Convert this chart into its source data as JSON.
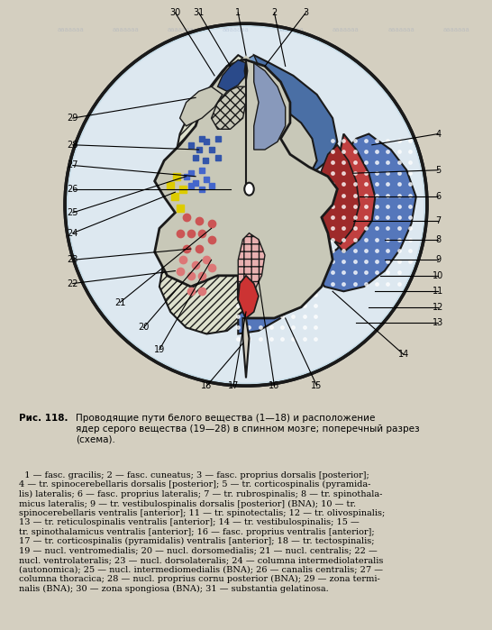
{
  "title": "Рис. 118.",
  "caption_bold": "Рис. 118.",
  "caption_text": "Проводящие пути белого вещества (1—18) и расположение ядер серого вещества (19—28) в спинном мозге; поперечный разрез (схема).",
  "legend_text": "1 — fasc. gracilis; 2 — fasc. cuneatus; 3 — fasc. proprius dorsalis [posterior]; 4 — tr. spinocerebellaris dorsalis [posterior]; 5 — tr. corticospinalis (pyramidalis) lateralis; 6 — fasc. proprius lateralis; 7 — tr. rubrospinalis; 8 — tr. spinothalamicus lateralis; 9 — tr. vestibulospinalis dorsalis [posterior] (BNA); 10 — tr. spinocerebellaris ventralis [anterior]; 11 — tr. spinotectalis; 12 — tr. olivospinalis; 13 — tr. reticulospinalis ventralis [anterior]; 14 — tr. vestibulospinalis; 15 — tr. spinothalamicus ventralis [anterior]; 16 — fasc. proprius ventralis [anterior]; 17 — tr. corticospinalis (pyramidalis) ventralis [anterior]; 18 — tr. tectospinalis; 19 — nucl. ventromedialis; 20 — nucl. dorsomedialis; 21 — nucl. centralis; 22 — nucl. ventrolateralis; 23 — nucl. dorsolateralis; 24 — columna intermediolateralis (autonomica); 25 — nucl. intermediomedialis (BNA); 26 — canalis centralis; 27 — columna thoracica; 28 — nucl. proprius cornu posterior (BNA); 29 — zona terminalis (BNA); 30 — zona spongiosa (BNA); 31 — substantia gelatinosa.",
  "bg_color": "#e8e8d8",
  "outer_circle_color": "#1a1a1a",
  "white_matter_color": "#d0dce8",
  "gray_matter_color": "#c8c8c8",
  "blue_dorsal_color": "#4a6fa5",
  "red_lateral_color": "#c04040",
  "pink_ventral_color": "#e8a0a0",
  "dot_blue_color": "#5577bb",
  "hatch_color": "#333333"
}
